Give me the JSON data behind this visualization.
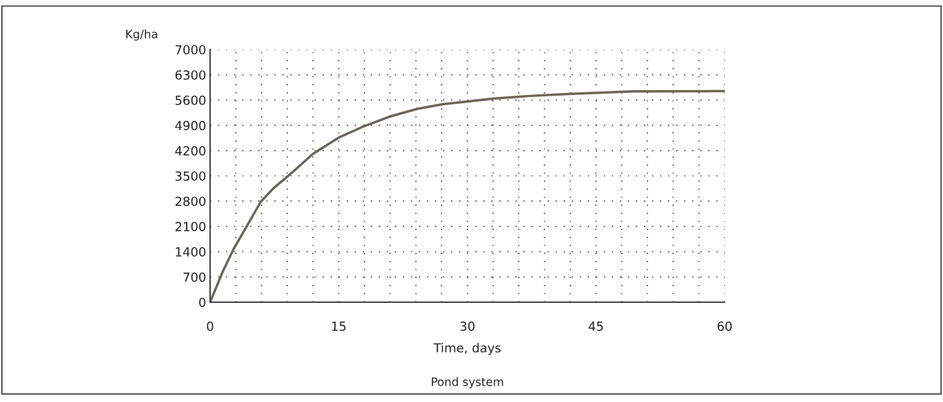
{
  "chart_data": {
    "type": "line",
    "ylabel": "Kg/ha",
    "xlabel": "Time, days",
    "annotations": [
      "Pond system"
    ],
    "x": [
      0,
      1.5,
      2.8,
      4.2,
      5.9,
      7.4,
      9.6,
      12,
      15,
      17.7,
      20.9,
      24.2,
      27.2,
      30,
      33,
      36.9,
      41.8,
      49.3,
      60
    ],
    "series": [
      {
        "color": "#6b6655",
        "values": [
          0,
          860,
          1500,
          2070,
          2780,
          3160,
          3600,
          4110,
          4560,
          4850,
          5140,
          5360,
          5490,
          5560,
          5640,
          5710,
          5770,
          5840,
          5850
        ]
      }
    ],
    "xlim": [
      0,
      60
    ],
    "xticks": [
      0,
      {
        "value": 3,
        "label": null
      },
      {
        "value": 6,
        "label": null
      },
      {
        "value": 9,
        "label": null
      },
      {
        "value": 12,
        "label": null
      },
      15,
      {
        "value": 18,
        "label": null
      },
      {
        "value": 21,
        "label": null
      },
      {
        "value": 24,
        "label": null
      },
      {
        "value": 27,
        "label": null
      },
      30,
      {
        "value": 33,
        "label": null
      },
      {
        "value": 36,
        "label": null
      },
      {
        "value": 39,
        "label": null
      },
      {
        "value": 42,
        "label": null
      },
      45,
      {
        "value": 48,
        "label": null
      },
      {
        "value": 51,
        "label": null
      },
      {
        "value": 54,
        "label": null
      },
      {
        "value": 57,
        "label": null
      },
      60
    ],
    "ylim": [
      0,
      7000
    ],
    "yticks": [
      0,
      700,
      1400,
      2100,
      2800,
      3500,
      4200,
      4900,
      5600,
      6300,
      7000
    ],
    "grid": true,
    "marker": "none",
    "line_style": "solid"
  }
}
